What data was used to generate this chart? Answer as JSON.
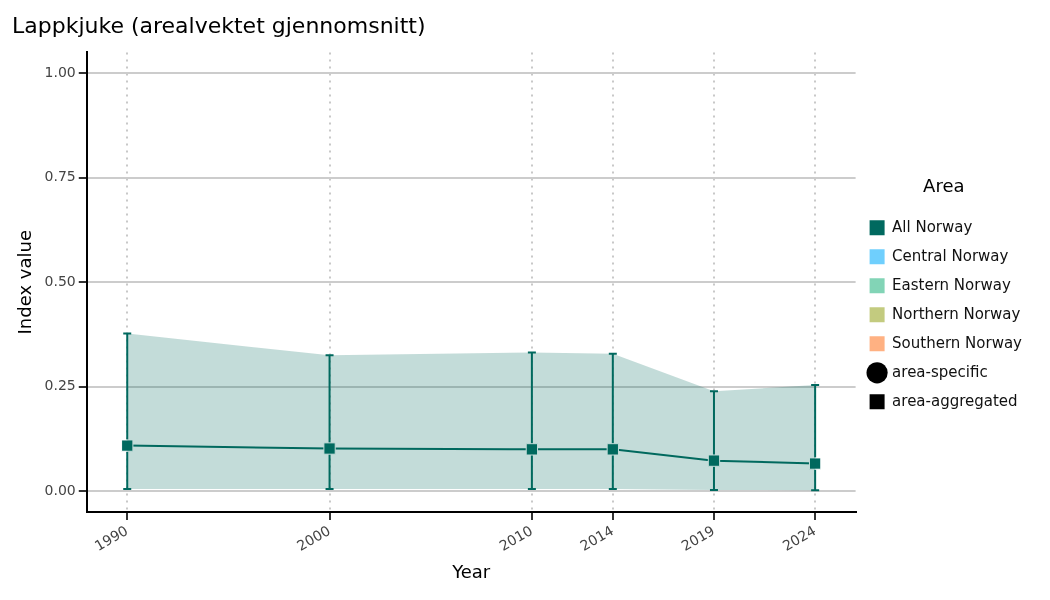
{
  "chart_data": {
    "type": "line",
    "title": "Lappkjuke (arealvektet gjennomsnitt)",
    "xlabel": "Year",
    "ylabel": "Index value",
    "legend_title": "Area",
    "x": [
      1990,
      2000,
      2010,
      2014,
      2019,
      2024
    ],
    "xlim": [
      1988,
      2026
    ],
    "xticks": [
      1990,
      2000,
      2010,
      2014,
      2019,
      2024
    ],
    "ylim": [
      -0.05,
      1.05
    ],
    "yticks": [
      {
        "value": 0,
        "label": "0.00"
      },
      {
        "value": 0.25,
        "label": "0.25"
      },
      {
        "value": 0.5,
        "label": "0.50"
      },
      {
        "value": 0.75,
        "label": "0.75"
      },
      {
        "value": 1,
        "label": "1.00"
      }
    ],
    "grid": true,
    "legend": "right",
    "series": [
      {
        "name": "All Norway",
        "color": "#00695f",
        "marker": "square",
        "values": [
          0.109,
          0.102,
          0.1,
          0.1,
          0.073,
          0.066
        ],
        "lower": [
          0.005,
          0.005,
          0.005,
          0.005,
          0.003,
          0.002
        ],
        "upper": [
          0.377,
          0.325,
          0.332,
          0.329,
          0.239,
          0.254
        ],
        "errors": [
          [
            0.005,
            0.377
          ],
          [
            0.005,
            0.325
          ],
          [
            0.005,
            0.332
          ],
          [
            0.005,
            0.329
          ],
          [
            0.003,
            0.239
          ],
          [
            0.002,
            0.254
          ]
        ]
      },
      {
        "name": "Central Norway",
        "color": "#6fcffd",
        "marker": "none",
        "values": [
          null,
          null,
          null,
          null,
          null,
          null
        ]
      },
      {
        "name": "Eastern Norway",
        "color": "#82d4b6",
        "marker": "none",
        "values": [
          null,
          null,
          null,
          null,
          null,
          null
        ]
      },
      {
        "name": "Northern Norway",
        "color": "#c3cb7f",
        "marker": "none",
        "values": [
          null,
          null,
          null,
          null,
          null,
          null
        ]
      },
      {
        "name": "Southern Norway",
        "color": "#ffb182",
        "marker": "none",
        "values": [
          null,
          null,
          null,
          null,
          null,
          null
        ]
      },
      {
        "name": "area-specific",
        "color": "#000000",
        "marker": "circle",
        "values": [
          null,
          null,
          null,
          null,
          null,
          null
        ]
      },
      {
        "name": "area-aggregated",
        "color": "#000000",
        "marker": "square",
        "values": [
          null,
          null,
          null,
          null,
          null,
          null
        ]
      }
    ]
  }
}
